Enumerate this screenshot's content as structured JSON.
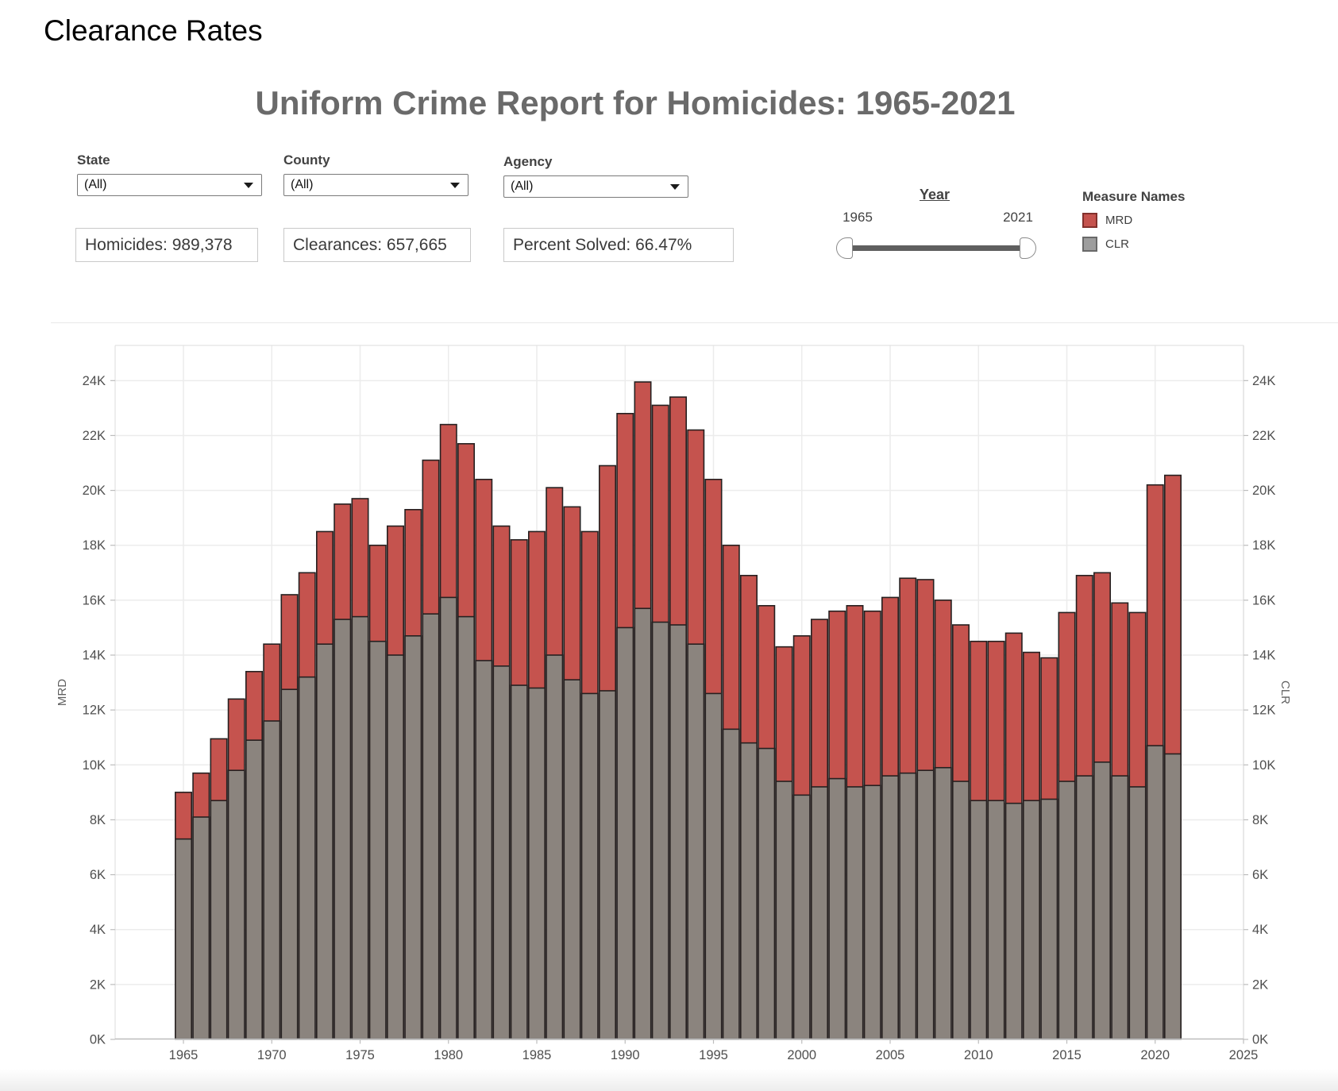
{
  "header": {
    "page_title": "Clearance Rates",
    "dashboard_title": "Uniform Crime Report for Homicides: 1965-2021"
  },
  "filters": [
    {
      "label": "State",
      "value": "(All)"
    },
    {
      "label": "County",
      "value": "(All)"
    },
    {
      "label": "Agency",
      "value": "(All)"
    }
  ],
  "stats": [
    {
      "text": "Homicides: 989,378"
    },
    {
      "text": "Clearances: 657,665"
    },
    {
      "text": "Percent Solved: 66.47%"
    }
  ],
  "slider": {
    "title": "Year",
    "min_label": "1965",
    "max_label": "2021"
  },
  "legend": {
    "title": "Measure Names",
    "items": [
      {
        "label": "MRD",
        "color": "#c5534e",
        "border": "#82302c"
      },
      {
        "label": "CLR",
        "color": "#9d9d9d",
        "border": "#696969"
      }
    ]
  },
  "chart_data": {
    "type": "bar",
    "title": "Uniform Crime Report for Homicides: 1965-2021",
    "xlabel": "Year",
    "ylabel_left": "MRD",
    "ylabel_right": "CLR",
    "grid": true,
    "ylim": [
      0,
      24000
    ],
    "ytick_step": 2000,
    "ytick_format": "K",
    "xticks": [
      1965,
      1970,
      1975,
      1980,
      1985,
      1990,
      1995,
      2000,
      2005,
      2010,
      2015,
      2020,
      2025
    ],
    "x_years": [
      1965,
      1966,
      1967,
      1968,
      1969,
      1970,
      1971,
      1972,
      1973,
      1974,
      1975,
      1976,
      1977,
      1978,
      1979,
      1980,
      1981,
      1982,
      1983,
      1984,
      1985,
      1986,
      1987,
      1988,
      1989,
      1990,
      1991,
      1992,
      1993,
      1994,
      1995,
      1996,
      1997,
      1998,
      1999,
      2000,
      2001,
      2002,
      2003,
      2004,
      2005,
      2006,
      2007,
      2008,
      2009,
      2010,
      2011,
      2012,
      2013,
      2014,
      2015,
      2016,
      2017,
      2018,
      2019,
      2020,
      2021
    ],
    "series": [
      {
        "name": "MRD",
        "color": "#c5534e",
        "values": [
          9000,
          9700,
          10950,
          12400,
          13400,
          14400,
          16200,
          17000,
          18500,
          19500,
          19700,
          18000,
          18700,
          19300,
          21100,
          22400,
          21700,
          20400,
          18700,
          18200,
          18500,
          20100,
          19400,
          18500,
          20900,
          22800,
          23950,
          23100,
          23400,
          22200,
          20400,
          18000,
          16900,
          15800,
          14300,
          14700,
          15300,
          15600,
          15800,
          15600,
          16100,
          16800,
          16750,
          16000,
          15100,
          14500,
          14500,
          14800,
          14100,
          13900,
          15550,
          16900,
          17000,
          15900,
          15550,
          20200,
          20550
        ]
      },
      {
        "name": "CLR",
        "color": "#8b847e",
        "values": [
          7300,
          8100,
          8700,
          9800,
          10900,
          11600,
          12750,
          13200,
          14400,
          15300,
          15400,
          14500,
          14000,
          14700,
          15500,
          16100,
          15400,
          13800,
          13600,
          12900,
          12800,
          14000,
          13100,
          12600,
          12700,
          15000,
          15700,
          15200,
          15100,
          14400,
          12600,
          11300,
          10800,
          10600,
          9400,
          8900,
          9200,
          9500,
          9200,
          9250,
          9600,
          9700,
          9800,
          9900,
          9400,
          8700,
          8700,
          8600,
          8700,
          8750,
          9400,
          9600,
          10100,
          9600,
          9200,
          10700,
          10400
        ]
      }
    ],
    "overlay_note": "CLR bars drawn in front of MRD bars, both starting at zero",
    "bar_outline": "#262020"
  }
}
